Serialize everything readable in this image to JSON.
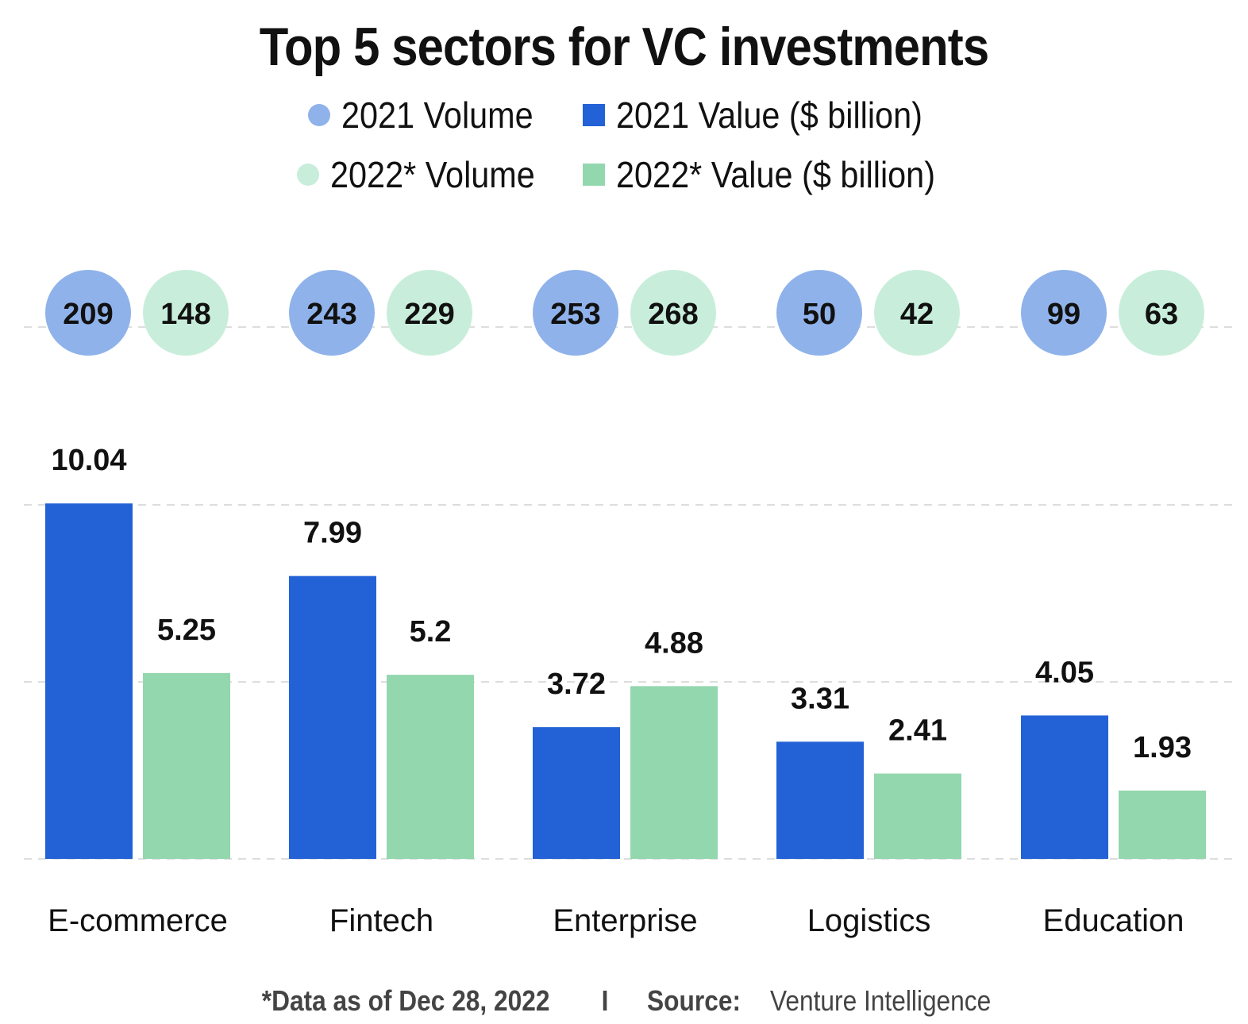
{
  "chart_data": {
    "type": "bar",
    "title": "Top 5 sectors for VC investments",
    "categories": [
      "E-commerce",
      "Fintech",
      "Enterprise",
      "Logistics",
      "Education"
    ],
    "legend": [
      {
        "label": "2021 Volume",
        "marker": "circle",
        "color": "#8fb2ea"
      },
      {
        "label": "2021 Value ($ billion)",
        "marker": "square",
        "color": "#2361d6"
      },
      {
        "label": "2022* Volume",
        "marker": "circle",
        "color": "#c8eedb"
      },
      {
        "label": "2022* Value ($ billion)",
        "marker": "square",
        "color": "#93d7ae"
      }
    ],
    "value_series": [
      {
        "name": "2021 Value ($ billion)",
        "color": "#2361d6",
        "values": [
          10.04,
          7.99,
          3.72,
          3.31,
          4.05
        ],
        "labels": [
          "10.04",
          "7.99",
          "3.72",
          "3.31",
          "4.05"
        ]
      },
      {
        "name": "2022* Value ($ billion)",
        "color": "#93d7ae",
        "values": [
          5.25,
          5.2,
          4.88,
          2.41,
          1.93
        ],
        "labels": [
          "5.25",
          "5.2",
          "4.88",
          "2.41",
          "1.93"
        ]
      }
    ],
    "volume_series": [
      {
        "name": "2021 Volume",
        "color": "#8fb2ea",
        "values": [
          209,
          243,
          253,
          50,
          99
        ]
      },
      {
        "name": "2022* Volume",
        "color": "#c8eedb",
        "values": [
          148,
          229,
          268,
          42,
          63
        ]
      }
    ],
    "ylim": [
      0,
      10
    ],
    "grid": true,
    "legend_position": "top-center"
  },
  "footer": {
    "note": "*Data as of Dec 28, 2022",
    "separator": "I",
    "source_label": "Source:",
    "source_value": "Venture Intelligence"
  }
}
